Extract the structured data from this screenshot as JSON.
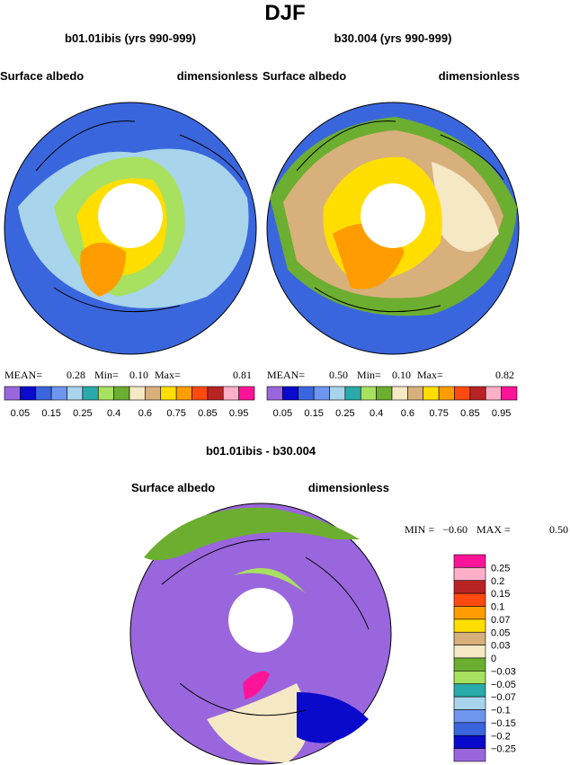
{
  "title": "DJF",
  "panels": [
    {
      "title": "b01.01ibis (yrs 990-999)",
      "left": "Surface albedo",
      "right": "dimensionless",
      "stats": [
        "MEAN=",
        "0.28",
        "Min=",
        "0.10",
        "Max=",
        "0.81"
      ]
    },
    {
      "title": "b30.004 (yrs 990-999)",
      "left": "Surface albedo",
      "right": "dimensionless",
      "stats": [
        "MEAN=",
        "0.50",
        "Min=",
        "0.10",
        "Max=",
        "0.82"
      ]
    }
  ],
  "colorbar": {
    "labels": [
      "0.05",
      "0.15",
      "0.25",
      "0.4",
      "0.6",
      "0.75",
      "0.85",
      "0.95"
    ],
    "colors": [
      "#9a66dd",
      "#0a0acc",
      "#3a66dd",
      "#6f96ee",
      "#a8d4ec",
      "#2aaaaa",
      "#a8e060",
      "#6cae30",
      "#f5e8c4",
      "#d8b07c",
      "#ffde00",
      "#ff9d00",
      "#ff4a10",
      "#b82424",
      "#ffb0c8",
      "#ff1499"
    ]
  },
  "diff": {
    "title": "b01.01ibis - b30.004",
    "left": "Surface albedo",
    "right": "dimensionless",
    "stats": [
      "MIN =",
      "−0.60",
      "MAX =",
      "0.50"
    ],
    "colorbar": {
      "labels": [
        "0.25",
        "0.2",
        "0.15",
        "0.1",
        "0.07",
        "0.05",
        "0.03",
        "0",
        "−0.03",
        "−0.05",
        "−0.07",
        "−0.1",
        "−0.15",
        "−0.2",
        "−0.25"
      ],
      "colors": [
        "#ff1499",
        "#ffb0c8",
        "#b82424",
        "#ff4a10",
        "#ff9d00",
        "#ffde00",
        "#d8b07c",
        "#f5e8c4",
        "#6cae30",
        "#a8e060",
        "#2aaaaa",
        "#a8d4ec",
        "#6f96ee",
        "#3a66dd",
        "#0a0acc",
        "#9a66dd"
      ]
    }
  }
}
